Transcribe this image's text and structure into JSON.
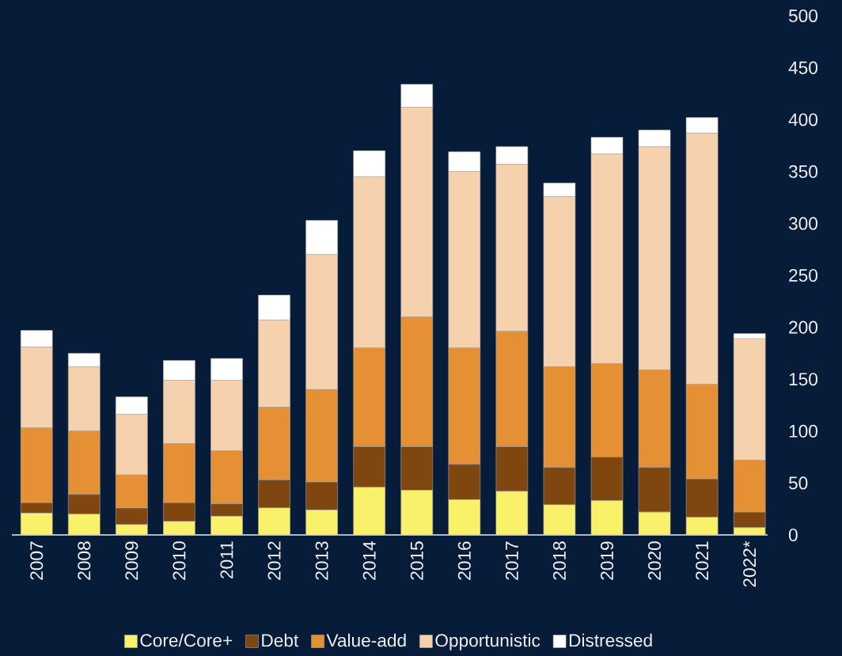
{
  "chart_data": {
    "type": "bar",
    "stacked": true,
    "categories": [
      "2007",
      "2008",
      "2009",
      "2010",
      "2011",
      "2012",
      "2013",
      "2014",
      "2015",
      "2016",
      "2017",
      "2018",
      "2019",
      "2020",
      "2021",
      "2022*"
    ],
    "series": [
      {
        "name": "Core/Core+",
        "color": "#f9f16a",
        "values": [
          21,
          20,
          10,
          13,
          18,
          26,
          24,
          46,
          43,
          34,
          42,
          29,
          33,
          22,
          17,
          7
        ]
      },
      {
        "name": "Debt",
        "color": "#7f4610",
        "values": [
          10,
          19,
          16,
          18,
          12,
          27,
          27,
          39,
          42,
          34,
          43,
          36,
          42,
          43,
          37,
          15
        ]
      },
      {
        "name": "Value-add",
        "color": "#e69035",
        "values": [
          72,
          61,
          32,
          57,
          51,
          70,
          89,
          95,
          125,
          112,
          111,
          97,
          90,
          94,
          91,
          50
        ]
      },
      {
        "name": "Opportunistic",
        "color": "#f5d1ad",
        "values": [
          78,
          62,
          58,
          61,
          68,
          84,
          130,
          165,
          202,
          170,
          161,
          164,
          202,
          215,
          242,
          117
        ]
      },
      {
        "name": "Distressed",
        "color": "#ffffff",
        "values": [
          16,
          13,
          17,
          19,
          21,
          24,
          33,
          25,
          22,
          19,
          17,
          13,
          16,
          16,
          15,
          5
        ]
      }
    ],
    "ylim": [
      0,
      500
    ],
    "yticks": [
      0,
      50,
      100,
      150,
      200,
      250,
      300,
      350,
      400,
      450,
      500
    ],
    "legend": "bottom"
  }
}
